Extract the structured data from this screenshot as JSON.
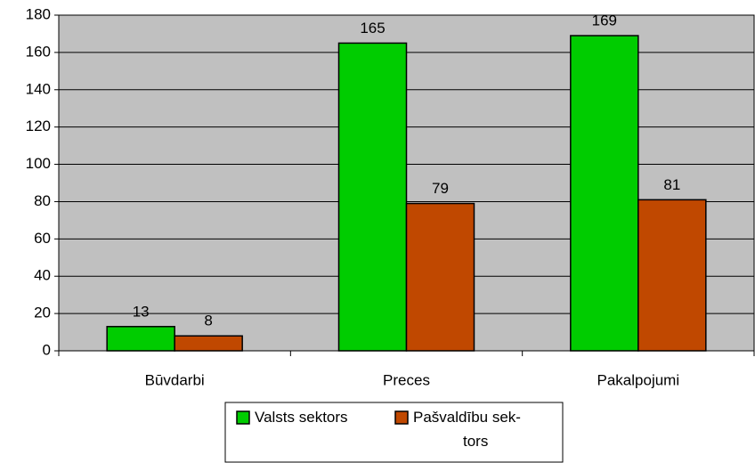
{
  "chart_data": {
    "type": "bar",
    "categories": [
      "Būvdarbi",
      "Preces",
      "Pakalpojumi"
    ],
    "series": [
      {
        "name": "Valsts sektors",
        "color": "#00cc00",
        "values": [
          13,
          165,
          169
        ]
      },
      {
        "name": "Pašvaldību sek- tors",
        "color": "#c04800",
        "values": [
          8,
          79,
          81
        ]
      }
    ],
    "ylim": [
      0,
      180
    ],
    "yticks": [
      0,
      20,
      40,
      60,
      80,
      100,
      120,
      140,
      160,
      180
    ],
    "grid": true,
    "legend": "bottom",
    "plot_background": "#c0c0c0"
  }
}
